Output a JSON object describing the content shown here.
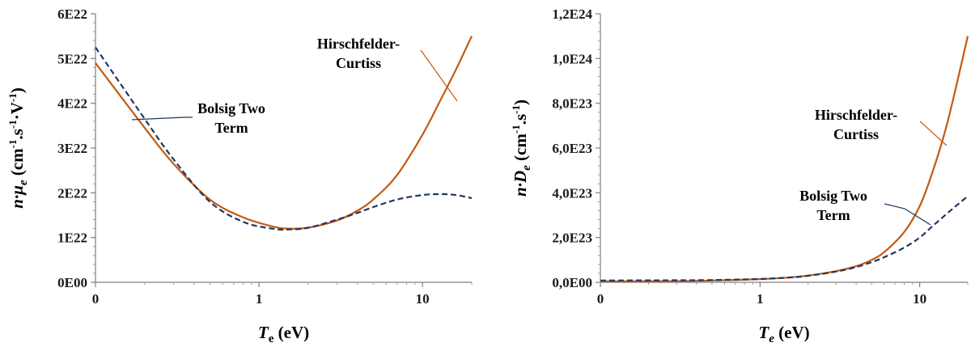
{
  "chart_data": [
    {
      "type": "line",
      "title": "",
      "xscale": "log",
      "ylabel_parts": {
        "main": "n·μ",
        "sub": "e",
        "unit": " (cm",
        "e1": "-1",
        "mid": ".s",
        "e2": "-1",
        "tail": "·V",
        "e3": "-1",
        "close": ")"
      },
      "xlabel_parts": {
        "main": "T",
        "sub": "e",
        "unit": " (eV)"
      },
      "x_tick_labels": [
        "0",
        "1",
        "10"
      ],
      "y_tick_labels": [
        "0E00",
        "1E22",
        "2E22",
        "3E22",
        "4E22",
        "5E22",
        "6E22"
      ],
      "ylim": [
        0,
        6e+22
      ],
      "grid": false,
      "series": [
        {
          "name": "Hirschfelder-Curtiss",
          "color": "#c55a11",
          "dash": "solid",
          "x": [
            0.1,
            0.2,
            0.3,
            0.5,
            0.8,
            1.2,
            1.5,
            2,
            3,
            4,
            5,
            7,
            10,
            13,
            16,
            20
          ],
          "y": [
            4.9e+22,
            3.45e+22,
            2.65e+22,
            1.85e+22,
            1.45e+22,
            1.25e+22,
            1.2e+22,
            1.22e+22,
            1.38e+22,
            1.6e+22,
            1.85e+22,
            2.4e+22,
            3.3e+22,
            4.1e+22,
            4.75e+22,
            5.5e+22
          ]
        },
        {
          "name": "Bolsig Two Term",
          "color": "#1f3864",
          "dash": "dashed",
          "x": [
            0.1,
            0.2,
            0.3,
            0.5,
            0.8,
            1.2,
            1.5,
            2,
            3,
            4,
            5,
            7,
            10,
            13,
            16,
            20
          ],
          "y": [
            5.25e+22,
            3.65e+22,
            2.75e+22,
            1.8e+22,
            1.35e+22,
            1.2e+22,
            1.18e+22,
            1.22e+22,
            1.4e+22,
            1.55e+22,
            1.68e+22,
            1.85e+22,
            1.95e+22,
            1.97e+22,
            1.95e+22,
            1.88e+22
          ]
        }
      ],
      "annotations": [
        {
          "text": [
            "Hirschfelder-",
            "Curtiss"
          ],
          "target": "Hirschfelder-Curtiss"
        },
        {
          "text": [
            "Bolsig Two",
            "Term"
          ],
          "target": "Bolsig Two Term"
        }
      ]
    },
    {
      "type": "line",
      "title": "",
      "xscale": "log",
      "ylabel_parts": {
        "main": "n·D",
        "sub": "e",
        "unit": " (cm",
        "e1": "-1",
        "mid": ".s",
        "e2": "-1",
        "close": ")"
      },
      "xlabel_parts": {
        "main": "T",
        "sub": "e",
        "unit": " (eV)"
      },
      "x_tick_labels": [
        "0",
        "1",
        "10"
      ],
      "y_tick_labels": [
        "0,0E00",
        "2,0E23",
        "4,0E23",
        "6,0E23",
        "8,0E23",
        "1,0E24",
        "1,2E24"
      ],
      "ylim": [
        0,
        1.2e+24
      ],
      "grid": false,
      "series": [
        {
          "name": "Hirschfelder-Curtiss",
          "color": "#c55a11",
          "dash": "solid",
          "x": [
            0.1,
            0.3,
            0.5,
            1,
            1.5,
            2,
            3,
            4,
            5,
            6,
            8,
            10,
            12,
            15,
            20
          ],
          "y": [
            4e+21,
            5e+21,
            8e+21,
            1.4e+22,
            2.1e+22,
            3e+22,
            5e+22,
            7.2e+22,
            1e+23,
            1.35e+23,
            2.25e+23,
            3.4e+23,
            4.9e+23,
            7.2e+23,
            1.1e+24
          ]
        },
        {
          "name": "Bolsig Two Term",
          "color": "#1f3864",
          "dash": "dashed",
          "x": [
            0.1,
            0.3,
            0.5,
            1,
            1.5,
            2,
            3,
            4,
            5,
            6,
            8,
            10,
            12,
            15,
            20
          ],
          "y": [
            8e+21,
            9e+21,
            1e+22,
            1.5e+22,
            2.1e+22,
            2.9e+22,
            4.8e+22,
            6.8e+22,
            9e+22,
            1.12e+23,
            1.55e+23,
            2e+23,
            2.5e+23,
            3.1e+23,
            3.85e+23
          ]
        }
      ],
      "annotations": [
        {
          "text": [
            "Hirschfelder-",
            "Curtiss"
          ],
          "target": "Hirschfelder-Curtiss"
        },
        {
          "text": [
            "Bolsig Two",
            "Term"
          ],
          "target": "Bolsig Two Term"
        }
      ]
    }
  ]
}
